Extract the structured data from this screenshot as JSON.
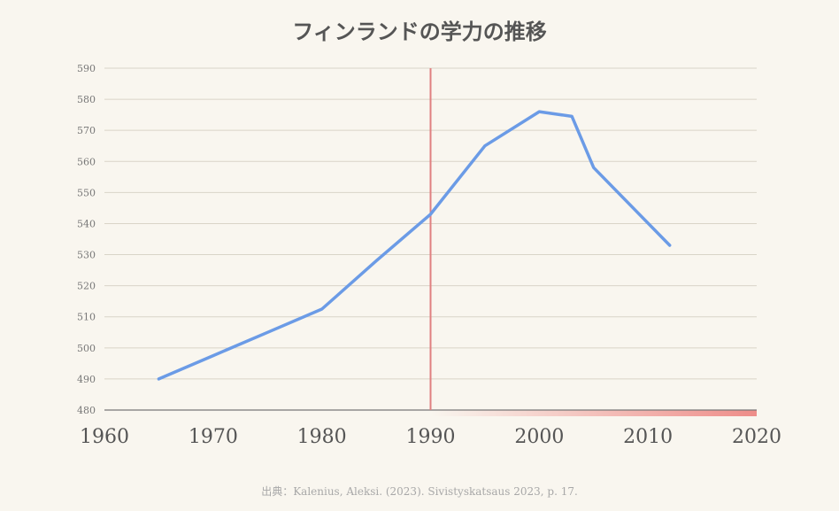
{
  "chart_data": {
    "type": "line",
    "title": "フィンランドの学力の推移",
    "source": "出典：Kalenius, Aleksi. (2023). Sivistyskatsaus 2023, p. 17.",
    "xlim": [
      1960,
      2020
    ],
    "ylim": [
      480,
      590
    ],
    "x_ticks": [
      1960,
      1970,
      1980,
      1990,
      2000,
      2010,
      2020
    ],
    "y_ticks": [
      480,
      490,
      500,
      510,
      520,
      530,
      540,
      550,
      560,
      570,
      580,
      590
    ],
    "grid": true,
    "marker_line_x": 1990,
    "shaded_range": [
      1990,
      2020
    ],
    "series": [
      {
        "x": [
          1965,
          1970,
          1975,
          1980,
          1985,
          1990,
          1995,
          2000,
          2003,
          2005,
          2012
        ],
        "values": [
          490,
          497.5,
          505,
          512.5,
          528,
          543,
          565,
          576,
          574.5,
          558,
          533
        ]
      }
    ],
    "colors": {
      "line": "#6b9be6",
      "marker_line": "#e08080",
      "band": "#ee8d89",
      "grid": "#d9d4c8",
      "axis": "#777777"
    }
  }
}
